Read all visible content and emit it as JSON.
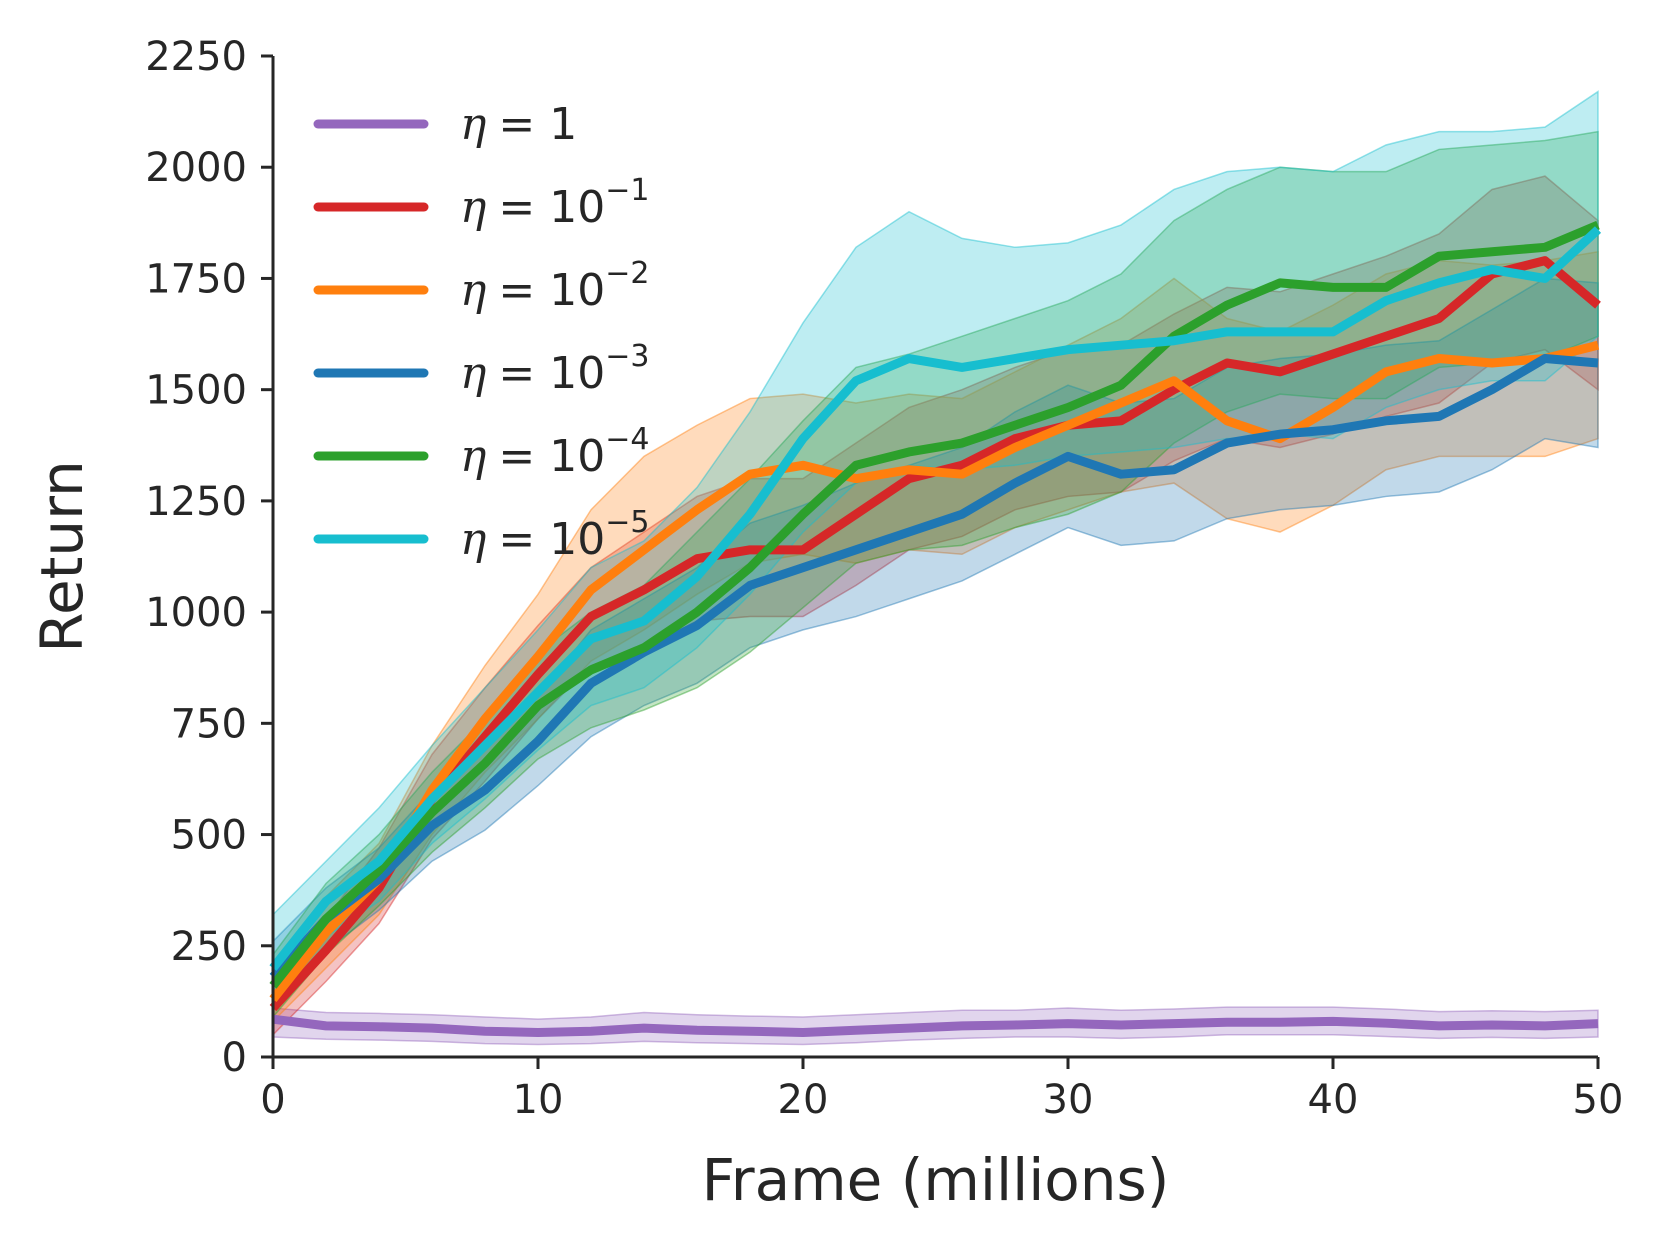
{
  "chart_data": {
    "type": "line",
    "title": "",
    "xlabel": "Frame (millions)",
    "ylabel": "Return",
    "xlim": [
      0,
      50
    ],
    "ylim": [
      0,
      2250
    ],
    "xticks": [
      0,
      10,
      20,
      30,
      40,
      50
    ],
    "yticks": [
      0,
      250,
      500,
      750,
      1000,
      1250,
      1500,
      1750,
      2000,
      2250
    ],
    "grid": false,
    "legend_position": "top-left",
    "series": [
      {
        "name": "η = 1",
        "eta": "η",
        "base": "= 1",
        "exp": "",
        "color": "#9467bd",
        "x": [
          0,
          2,
          4,
          6,
          8,
          10,
          12,
          14,
          16,
          18,
          20,
          22,
          24,
          26,
          28,
          30,
          32,
          34,
          36,
          38,
          40,
          42,
          44,
          46,
          48,
          50
        ],
        "values": [
          85,
          70,
          68,
          65,
          58,
          55,
          58,
          65,
          60,
          58,
          55,
          60,
          65,
          70,
          72,
          75,
          72,
          75,
          78,
          78,
          80,
          76,
          70,
          72,
          70,
          75
        ],
        "lower": [
          45,
          40,
          38,
          35,
          30,
          28,
          30,
          35,
          32,
          30,
          28,
          32,
          38,
          42,
          45,
          45,
          42,
          45,
          50,
          50,
          50,
          46,
          42,
          44,
          42,
          45
        ],
        "upper": [
          110,
          100,
          98,
          95,
          90,
          85,
          90,
          100,
          95,
          92,
          90,
          95,
          100,
          105,
          105,
          110,
          105,
          108,
          112,
          112,
          112,
          108,
          102,
          104,
          102,
          105
        ]
      },
      {
        "name": "η = 10^-1",
        "eta": "η",
        "base": "= 10",
        "exp": "−1",
        "color": "#d62728",
        "x": [
          0,
          2,
          4,
          6,
          8,
          10,
          12,
          14,
          16,
          18,
          20,
          22,
          24,
          26,
          28,
          30,
          32,
          34,
          36,
          38,
          40,
          42,
          44,
          46,
          48,
          50
        ],
        "values": [
          110,
          240,
          380,
          580,
          720,
          860,
          990,
          1050,
          1120,
          1140,
          1140,
          1220,
          1300,
          1330,
          1390,
          1420,
          1430,
          1500,
          1560,
          1540,
          1580,
          1620,
          1660,
          1760,
          1790,
          1690
        ],
        "lower": [
          50,
          170,
          300,
          490,
          620,
          760,
          880,
          920,
          980,
          990,
          990,
          1060,
          1140,
          1170,
          1230,
          1260,
          1270,
          1340,
          1390,
          1370,
          1400,
          1440,
          1470,
          1560,
          1590,
          1500
        ],
        "upper": [
          170,
          310,
          470,
          680,
          830,
          970,
          1100,
          1180,
          1260,
          1300,
          1300,
          1380,
          1460,
          1500,
          1550,
          1590,
          1600,
          1670,
          1730,
          1720,
          1760,
          1800,
          1850,
          1950,
          1980,
          1880
        ]
      },
      {
        "name": "η = 10^-2",
        "eta": "η",
        "base": "= 10",
        "exp": "−2",
        "color": "#ff7f0e",
        "x": [
          0,
          2,
          4,
          6,
          8,
          10,
          12,
          14,
          16,
          18,
          20,
          22,
          24,
          26,
          28,
          30,
          32,
          34,
          36,
          38,
          40,
          42,
          44,
          46,
          48,
          50
        ],
        "values": [
          130,
          280,
          400,
          600,
          760,
          900,
          1050,
          1140,
          1230,
          1310,
          1330,
          1300,
          1320,
          1310,
          1370,
          1420,
          1470,
          1520,
          1430,
          1390,
          1460,
          1540,
          1570,
          1560,
          1570,
          1600
        ],
        "lower": [
          80,
          200,
          320,
          500,
          640,
          760,
          890,
          960,
          1040,
          1110,
          1130,
          1110,
          1140,
          1130,
          1190,
          1230,
          1270,
          1290,
          1210,
          1180,
          1240,
          1320,
          1350,
          1350,
          1350,
          1390
        ],
        "upper": [
          180,
          360,
          480,
          700,
          880,
          1040,
          1230,
          1350,
          1420,
          1480,
          1490,
          1470,
          1490,
          1480,
          1540,
          1600,
          1660,
          1750,
          1660,
          1630,
          1690,
          1760,
          1790,
          1780,
          1790,
          1810
        ]
      },
      {
        "name": "η = 10^-3",
        "eta": "η",
        "base": "= 10",
        "exp": "−3",
        "color": "#1f77b4",
        "x": [
          0,
          2,
          4,
          6,
          8,
          10,
          12,
          14,
          16,
          18,
          20,
          22,
          24,
          26,
          28,
          30,
          32,
          34,
          36,
          38,
          40,
          42,
          44,
          46,
          48,
          50
        ],
        "values": [
          180,
          310,
          400,
          520,
          600,
          710,
          840,
          910,
          970,
          1060,
          1100,
          1140,
          1180,
          1220,
          1290,
          1350,
          1310,
          1320,
          1380,
          1400,
          1410,
          1430,
          1440,
          1500,
          1570,
          1560
        ],
        "lower": [
          110,
          240,
          330,
          440,
          510,
          610,
          720,
          790,
          840,
          920,
          960,
          990,
          1030,
          1070,
          1130,
          1190,
          1150,
          1160,
          1210,
          1230,
          1240,
          1260,
          1270,
          1320,
          1390,
          1370
        ],
        "upper": [
          260,
          380,
          470,
          600,
          690,
          810,
          960,
          1030,
          1100,
          1200,
          1240,
          1290,
          1330,
          1370,
          1450,
          1510,
          1470,
          1480,
          1550,
          1570,
          1580,
          1600,
          1610,
          1680,
          1750,
          1740
        ]
      },
      {
        "name": "η = 10^-4",
        "eta": "η",
        "base": "= 10",
        "exp": "−4",
        "color": "#2ca02c",
        "x": [
          0,
          2,
          4,
          6,
          8,
          10,
          12,
          14,
          16,
          18,
          20,
          22,
          24,
          26,
          28,
          30,
          32,
          34,
          36,
          38,
          40,
          42,
          44,
          46,
          48,
          50
        ],
        "values": [
          160,
          310,
          420,
          550,
          660,
          790,
          870,
          920,
          1000,
          1100,
          1220,
          1330,
          1360,
          1380,
          1420,
          1460,
          1510,
          1620,
          1690,
          1740,
          1730,
          1730,
          1800,
          1810,
          1820,
          1870
        ],
        "lower": [
          90,
          230,
          340,
          460,
          560,
          670,
          740,
          780,
          830,
          910,
          1010,
          1110,
          1140,
          1150,
          1190,
          1220,
          1270,
          1380,
          1450,
          1490,
          1480,
          1480,
          1550,
          1560,
          1570,
          1620
        ],
        "upper": [
          230,
          390,
          500,
          640,
          760,
          910,
          1000,
          1060,
          1180,
          1300,
          1430,
          1550,
          1580,
          1620,
          1660,
          1700,
          1760,
          1880,
          1950,
          2000,
          1990,
          1990,
          2040,
          2050,
          2060,
          2080
        ]
      },
      {
        "name": "η = 10^-5",
        "eta": "η",
        "base": "= 10",
        "exp": "−5",
        "color": "#17becf",
        "x": [
          0,
          2,
          4,
          6,
          8,
          10,
          12,
          14,
          16,
          18,
          20,
          22,
          24,
          26,
          28,
          30,
          32,
          34,
          36,
          38,
          40,
          42,
          44,
          46,
          48,
          50
        ],
        "values": [
          200,
          350,
          440,
          580,
          700,
          820,
          940,
          980,
          1080,
          1220,
          1390,
          1520,
          1570,
          1550,
          1570,
          1590,
          1600,
          1610,
          1630,
          1630,
          1630,
          1700,
          1740,
          1770,
          1750,
          1860
        ],
        "lower": [
          110,
          270,
          350,
          480,
          580,
          690,
          790,
          830,
          920,
          1040,
          1180,
          1290,
          1330,
          1320,
          1330,
          1350,
          1360,
          1370,
          1390,
          1400,
          1390,
          1460,
          1500,
          1520,
          1520,
          1620
        ],
        "upper": [
          320,
          440,
          560,
          700,
          830,
          960,
          1100,
          1160,
          1280,
          1450,
          1650,
          1820,
          1900,
          1840,
          1820,
          1830,
          1870,
          1950,
          1990,
          2000,
          1990,
          2050,
          2080,
          2080,
          2090,
          2170
        ]
      }
    ]
  }
}
